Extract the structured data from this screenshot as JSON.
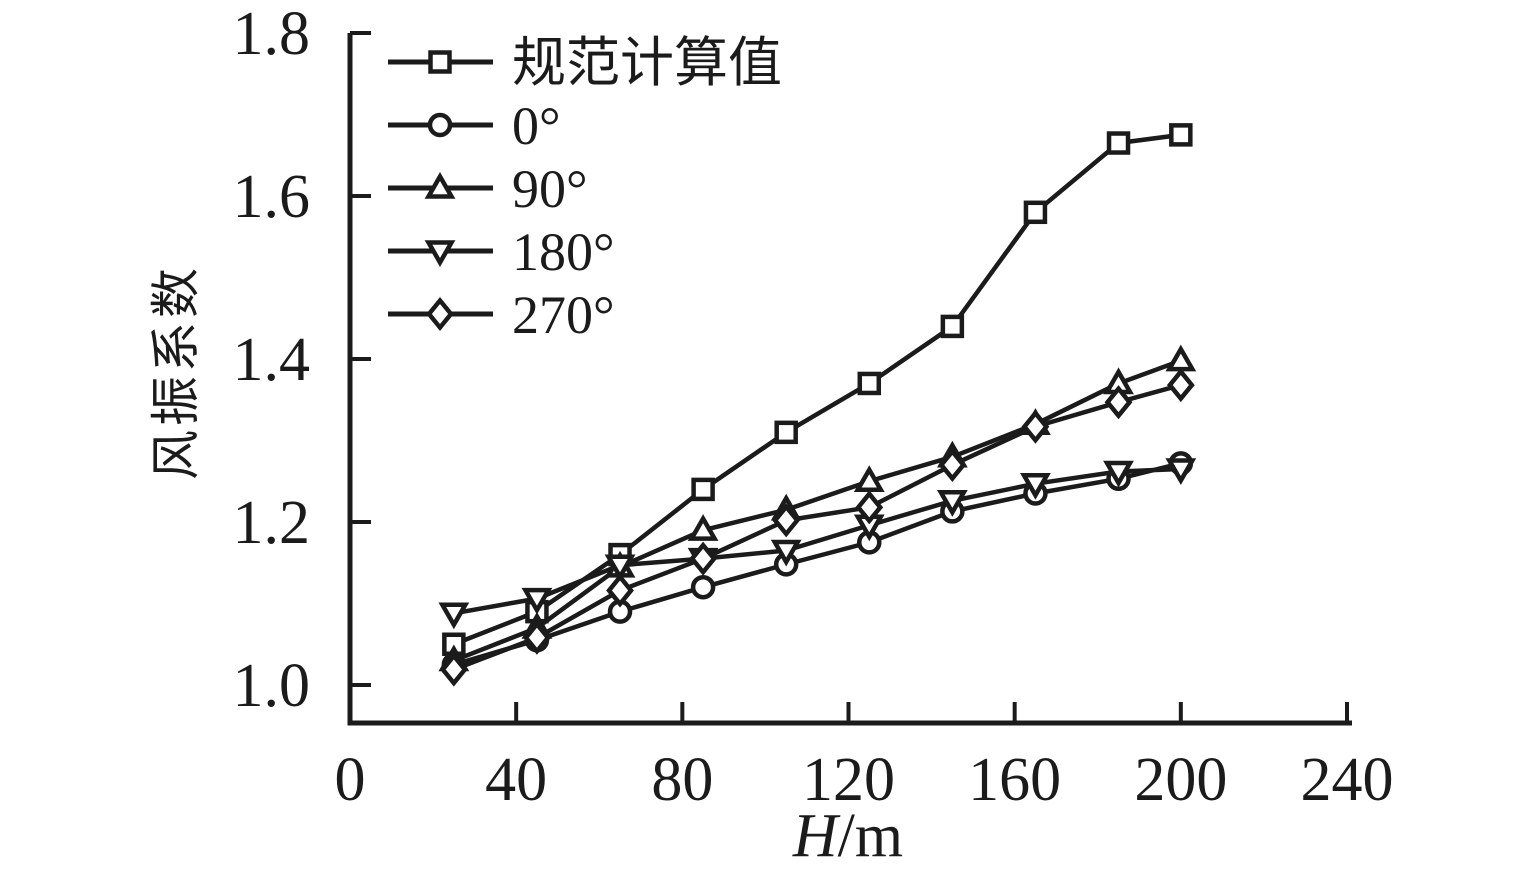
{
  "page": {
    "background": "#ffffff",
    "ink_color": "#1b1b1b"
  },
  "chart_data": {
    "type": "line",
    "title": "",
    "xlabel": "H/m",
    "xlabel_italic_part": "H",
    "xlabel_regular_part": "/m",
    "ylabel": "风振系数",
    "x": [
      25,
      45,
      65,
      85,
      105,
      125,
      145,
      165,
      185,
      200
    ],
    "xlim": [
      0,
      240
    ],
    "ylim": [
      0.95,
      1.8
    ],
    "x_ticks": [
      0,
      40,
      80,
      120,
      160,
      200,
      240
    ],
    "y_ticks": [
      1.0,
      1.2,
      1.4,
      1.6,
      1.8
    ],
    "grid": false,
    "legend_position": "inside-top-left",
    "marker_fill": "#ffffff",
    "line_color": "#1b1b1b",
    "series": [
      {
        "id": "code-value",
        "name": "规范计算值",
        "marker": "square",
        "values": [
          1.05,
          1.09,
          1.16,
          1.24,
          1.31,
          1.37,
          1.44,
          1.58,
          1.665,
          1.675
        ]
      },
      {
        "id": "deg0",
        "name": "0°",
        "marker": "circle",
        "values": [
          1.025,
          1.055,
          1.09,
          1.12,
          1.148,
          1.175,
          1.213,
          1.235,
          1.253,
          1.272
        ]
      },
      {
        "id": "deg90",
        "name": "90°",
        "marker": "triangle-up",
        "values": [
          1.03,
          1.07,
          1.145,
          1.19,
          1.215,
          1.25,
          1.28,
          1.32,
          1.37,
          1.398
        ]
      },
      {
        "id": "deg180",
        "name": "180°",
        "marker": "triangle-down",
        "values": [
          1.088,
          1.106,
          1.147,
          1.155,
          1.165,
          1.196,
          1.226,
          1.247,
          1.262,
          1.265
        ]
      },
      {
        "id": "deg270",
        "name": "270°",
        "marker": "diamond",
        "values": [
          1.019,
          1.058,
          1.116,
          1.155,
          1.202,
          1.218,
          1.27,
          1.317,
          1.347,
          1.368
        ]
      }
    ]
  }
}
